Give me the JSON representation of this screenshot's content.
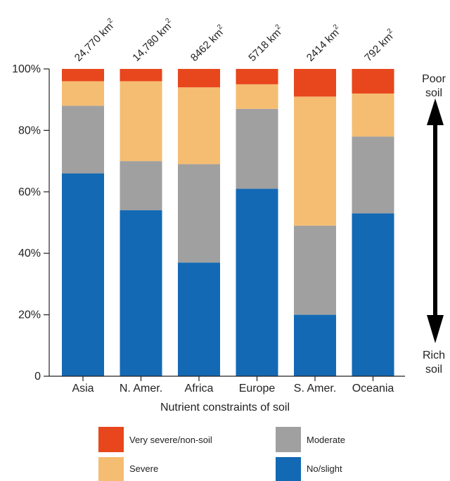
{
  "chart_data": {
    "type": "bar",
    "stacked": true,
    "categories": [
      "Asia",
      "N. Amer.",
      "Africa",
      "Europe",
      "S. Amer.",
      "Oceania"
    ],
    "area_labels": [
      "24,770 km",
      "14,780 km",
      "8462 km",
      "5718 km",
      "2414 km",
      "792 km"
    ],
    "area_unit_superscript": "2",
    "series": [
      {
        "name": "No/slight",
        "color": "#1369b4",
        "values": [
          66,
          54,
          37,
          61,
          20,
          53
        ]
      },
      {
        "name": "Moderate",
        "color": "#a0a0a0",
        "values": [
          22,
          16,
          32,
          26,
          29,
          25
        ]
      },
      {
        "name": "Severe",
        "color": "#f5bd72",
        "values": [
          8,
          26,
          25,
          8,
          42,
          14
        ]
      },
      {
        "name": "Very severe/non-soil",
        "color": "#e8461c",
        "values": [
          4,
          4,
          6,
          5,
          9,
          8
        ]
      }
    ],
    "ylim": [
      0,
      100
    ],
    "yticks": [
      0,
      20,
      40,
      60,
      80,
      100
    ],
    "ytick_labels": [
      "0",
      "20%",
      "40%",
      "60%",
      "80%",
      "100%"
    ],
    "xlabel": "Nutrient constraints of soil",
    "ylabel": "",
    "side_labels": {
      "top": [
        "Poor",
        "soil"
      ],
      "bottom": [
        "Rich",
        "soil"
      ]
    },
    "legend": {
      "placement": "bottom",
      "items": [
        {
          "label": "Very severe/non-soil",
          "color": "#e8461c"
        },
        {
          "label": "Moderate",
          "color": "#a0a0a0"
        },
        {
          "label": "Severe",
          "color": "#f5bd72"
        },
        {
          "label": "No/slight",
          "color": "#1369b4"
        }
      ]
    }
  }
}
